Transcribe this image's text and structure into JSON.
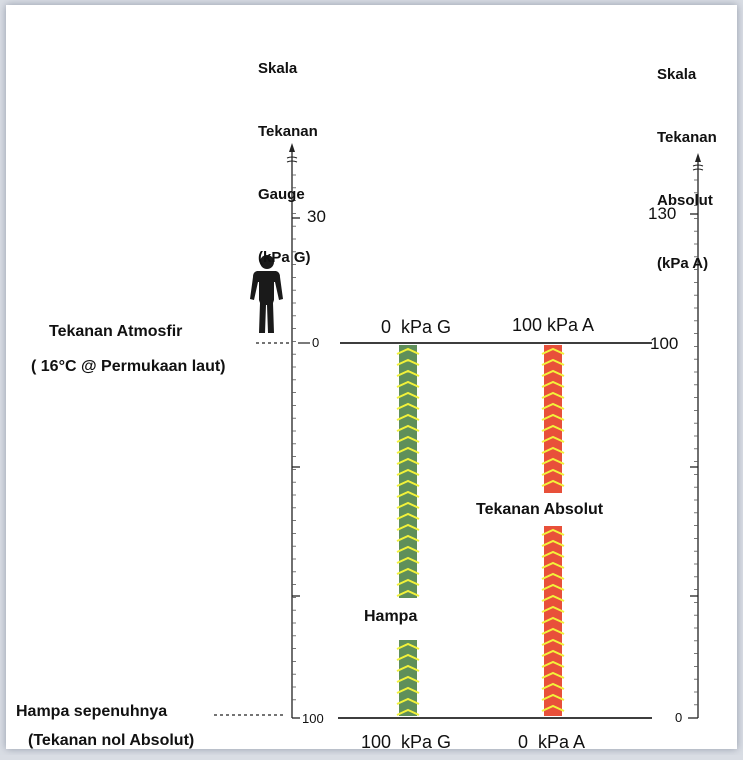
{
  "left_scale": {
    "title_lines": [
      "Skala",
      "Tekanan",
      "Gauge",
      "(kPa G)"
    ],
    "ticks": [
      {
        "label": "30",
        "value": 30
      },
      {
        "label": "0",
        "value": 0
      },
      {
        "label": "100",
        "value": -100
      }
    ]
  },
  "right_scale": {
    "title_lines": [
      "Skala",
      "Tekanan",
      "Absolut",
      "(kPa A)"
    ],
    "ticks": [
      {
        "label": "130",
        "value": 130
      },
      {
        "label": "100",
        "value": 100
      },
      {
        "label": "0",
        "value": 0
      }
    ]
  },
  "labels": {
    "atmosphere": "Tekanan Atmosfir",
    "atmosphere_note": "( 16°C @ Permukaan laut)",
    "full_vacuum": "Hampa sepenuhnya",
    "full_vacuum_note": "(Tekanan nol Absolut)",
    "vacuum": "Hampa",
    "absolute_pressure": "Tekanan Absolut",
    "zero_gauge": "0  kPa G",
    "hundred_abs": "100 kPa A",
    "hundred_gauge": "100  kPa G",
    "zero_abs": "0  kPa A"
  },
  "colors": {
    "vacuum_bar": "#5f8f5a",
    "absolute_bar": "#e8503a",
    "chevron": "#f2f23a"
  },
  "icons": [
    "person-silhouette-icon",
    "arrow-up-icon"
  ]
}
